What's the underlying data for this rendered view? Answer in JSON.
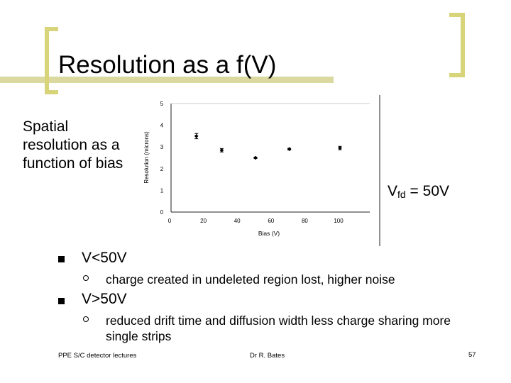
{
  "slide": {
    "title": "Resolution as a f(V)",
    "side_text": "Spatial resolution as a function of bias",
    "vfd_label": "V",
    "vfd_sub": "fd",
    "vfd_value": " = 50V",
    "bullets": [
      {
        "text": "V<50V",
        "sub": [
          "charge created in undeleted region lost, higher noise"
        ]
      },
      {
        "text": "V>50V",
        "sub": [
          "reduced drift time and diffusion width less charge sharing more single strips"
        ]
      }
    ]
  },
  "footer": {
    "left": "PPE S/C detector lectures",
    "center": "Dr R. Bates",
    "page": "57"
  },
  "colors": {
    "bracket": "#d8d47a",
    "title_bar": "#dcd9a0",
    "text": "#000000"
  },
  "chart_data": {
    "type": "scatter",
    "xlabel": "Bias (V)",
    "ylabel": "Resolution (microns)",
    "xlim": [
      0,
      100
    ],
    "ylim": [
      0,
      5
    ],
    "xticks": [
      0,
      20,
      40,
      60,
      80,
      100
    ],
    "yticks": [
      0,
      1,
      2,
      3,
      4,
      5
    ],
    "series": [
      {
        "x": [
          15,
          30,
          50,
          70,
          100
        ],
        "y": [
          3.5,
          2.85,
          2.5,
          2.9,
          2.95
        ],
        "err": [
          0.12,
          0.08,
          0.03,
          0.04,
          0.08
        ]
      }
    ]
  }
}
